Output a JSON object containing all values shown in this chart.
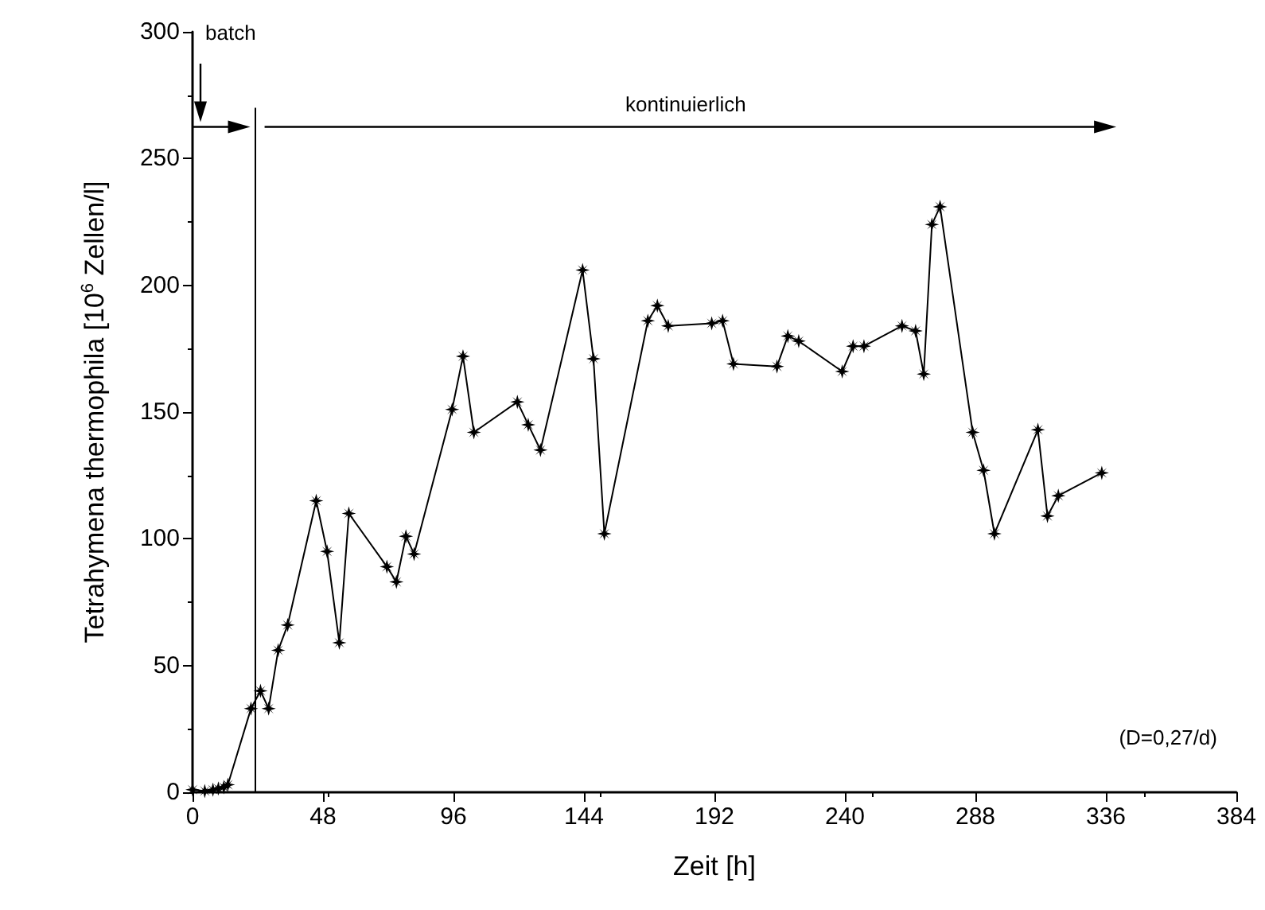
{
  "chart_data": {
    "type": "line",
    "xlabel": "Zeit [h]",
    "ylabel": "Tetrahymena thermophila [10$^{6}$ Zellen/l]",
    "xlim": [
      0,
      384
    ],
    "xticks": [
      0,
      48,
      96,
      144,
      192,
      240,
      288,
      336,
      384
    ],
    "ylim": [
      0,
      300
    ],
    "yticks": [
      0,
      50,
      100,
      150,
      200,
      250,
      300
    ],
    "grid": false,
    "marker": "star",
    "line_style": "solid",
    "series": [
      {
        "color": "#000000",
        "x": [
          0,
          4.5,
          7.5,
          9.5,
          11.5,
          13,
          21.5,
          25,
          28,
          31.5,
          35,
          45.5,
          49.5,
          54,
          57.5,
          71.5,
          75,
          78.5,
          81.5,
          95.5,
          99.5,
          103.5,
          119.5,
          123.5,
          128,
          143.5,
          147.5,
          151.5,
          167.5,
          171,
          175,
          191,
          195,
          199,
          215,
          219,
          223,
          239,
          243,
          247,
          261,
          266,
          269,
          272,
          275,
          287,
          291,
          295,
          311,
          314.5,
          318.5,
          334.5
        ],
        "values": [
          1,
          0.5,
          1,
          1.5,
          2,
          3,
          33,
          40,
          33,
          56,
          66,
          115,
          95,
          59,
          110,
          89,
          83,
          101,
          94,
          151,
          172,
          142,
          154,
          145,
          135,
          206,
          171,
          102,
          186,
          192,
          184,
          185,
          186,
          169,
          168,
          180,
          178,
          166,
          176,
          176,
          184,
          182,
          165,
          224,
          231,
          142,
          127,
          102,
          143,
          109,
          117,
          126
        ]
      }
    ],
    "ref_lines": [
      {
        "axis": "x",
        "value": 23,
        "label": null
      }
    ],
    "annotations": [
      "batch",
      "kontinuierlich",
      "(D=0,27/d)"
    ]
  }
}
